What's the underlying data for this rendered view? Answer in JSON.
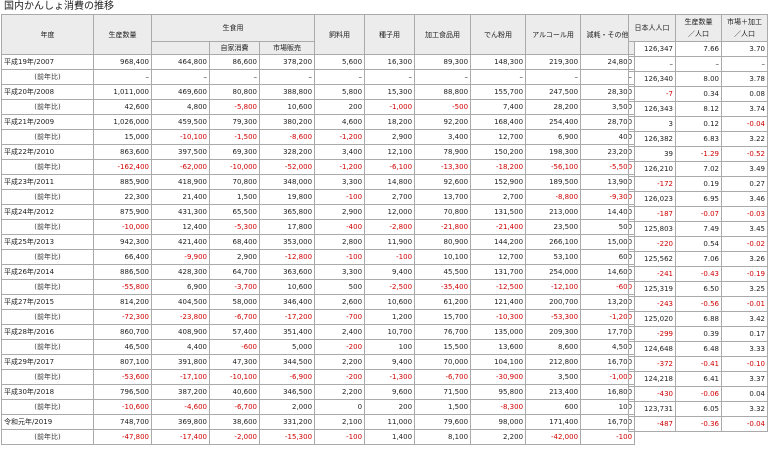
{
  "title": "国内かんしょ消費の推移",
  "headers": {
    "year": "年度",
    "production": "生産数量",
    "food": "生食用",
    "household": "自家消費",
    "market": "市場販売",
    "feed": "飼料用",
    "seed": "種子用",
    "processed": "加工食品用",
    "starch": "でん粉用",
    "alcohol": "アルコール用",
    "loss": "減耗・その他",
    "population": "日本人人口",
    "per_capita_prod": "生産数量\n／人口",
    "per_capita_market": "市場＋加工\n／人口"
  },
  "yoy_label": "(前年比)",
  "rows": [
    {
      "year": "平成19年/2007",
      "v": [
        "968,400",
        "464,800",
        "86,600",
        "378,200",
        "5,600",
        "16,300",
        "89,300",
        "148,300",
        "219,300",
        "24,800"
      ],
      "d": [
        "–",
        "–",
        "–",
        "–",
        "–",
        "–",
        "–",
        "–",
        "–",
        "–"
      ],
      "p": [
        "126,347",
        "7.66",
        "3.70"
      ],
      "pd": [
        "–",
        "–",
        "–"
      ]
    },
    {
      "year": "平成20年/2008",
      "v": [
        "1,011,000",
        "469,600",
        "80,800",
        "388,800",
        "5,800",
        "15,300",
        "88,800",
        "155,700",
        "247,500",
        "28,300"
      ],
      "d": [
        "42,600",
        "4,800",
        "-5,800",
        "10,600",
        "200",
        "-1,000",
        "-500",
        "7,400",
        "28,200",
        "3,500"
      ],
      "p": [
        "126,340",
        "8.00",
        "3.78"
      ],
      "pd": [
        "-7",
        "0.34",
        "0.08"
      ]
    },
    {
      "year": "平成21年/2009",
      "v": [
        "1,026,000",
        "459,500",
        "79,300",
        "380,200",
        "4,600",
        "18,200",
        "92,200",
        "168,400",
        "254,400",
        "28,700"
      ],
      "d": [
        "15,000",
        "-10,100",
        "-1,500",
        "-8,600",
        "-1,200",
        "2,900",
        "3,400",
        "12,700",
        "6,900",
        "400"
      ],
      "p": [
        "126,343",
        "8.12",
        "3.74"
      ],
      "pd": [
        "3",
        "0.12",
        "-0.04"
      ]
    },
    {
      "year": "平成22年/2010",
      "v": [
        "863,600",
        "397,500",
        "69,300",
        "328,200",
        "3,400",
        "12,100",
        "78,900",
        "150,200",
        "198,300",
        "23,200"
      ],
      "d": [
        "-162,400",
        "-62,000",
        "-10,000",
        "-52,000",
        "-1,200",
        "-6,100",
        "-13,300",
        "-18,200",
        "-56,100",
        "-5,500"
      ],
      "p": [
        "126,382",
        "6.83",
        "3.22"
      ],
      "pd": [
        "39",
        "-1.29",
        "-0.52"
      ]
    },
    {
      "year": "平成23年/2011",
      "v": [
        "885,900",
        "418,900",
        "70,800",
        "348,000",
        "3,300",
        "14,800",
        "92,600",
        "152,900",
        "189,500",
        "13,900"
      ],
      "d": [
        "22,300",
        "21,400",
        "1,500",
        "19,800",
        "-100",
        "2,700",
        "13,700",
        "2,700",
        "-8,800",
        "-9,300"
      ],
      "p": [
        "126,210",
        "7.02",
        "3.49"
      ],
      "pd": [
        "-172",
        "0.19",
        "0.27"
      ]
    },
    {
      "year": "平成24年/2012",
      "v": [
        "875,900",
        "431,300",
        "65,500",
        "365,800",
        "2,900",
        "12,000",
        "70,800",
        "131,500",
        "213,000",
        "14,400"
      ],
      "d": [
        "-10,000",
        "12,400",
        "-5,300",
        "17,800",
        "-400",
        "-2,800",
        "-21,800",
        "-21,400",
        "23,500",
        "500"
      ],
      "p": [
        "126,023",
        "6.95",
        "3.46"
      ],
      "pd": [
        "-187",
        "-0.07",
        "-0.03"
      ]
    },
    {
      "year": "平成25年/2013",
      "v": [
        "942,300",
        "421,400",
        "68,400",
        "353,000",
        "2,800",
        "11,900",
        "80,900",
        "144,200",
        "266,100",
        "15,000"
      ],
      "d": [
        "66,400",
        "-9,900",
        "2,900",
        "-12,800",
        "-100",
        "-100",
        "10,100",
        "12,700",
        "53,100",
        "600"
      ],
      "p": [
        "125,803",
        "7.49",
        "3.45"
      ],
      "pd": [
        "-220",
        "0.54",
        "-0.02"
      ]
    },
    {
      "year": "平成26年/2014",
      "v": [
        "886,500",
        "428,300",
        "64,700",
        "363,600",
        "3,300",
        "9,400",
        "45,500",
        "131,700",
        "254,000",
        "14,600"
      ],
      "d": [
        "-55,800",
        "6,900",
        "-3,700",
        "10,600",
        "500",
        "-2,500",
        "-35,400",
        "-12,500",
        "-12,100",
        "-600"
      ],
      "p": [
        "125,562",
        "7.06",
        "3.26"
      ],
      "pd": [
        "-241",
        "-0.43",
        "-0.19"
      ]
    },
    {
      "year": "平成27年/2015",
      "v": [
        "814,200",
        "404,500",
        "58,000",
        "346,400",
        "2,600",
        "10,600",
        "61,200",
        "121,400",
        "200,700",
        "13,200"
      ],
      "d": [
        "-72,300",
        "-23,800",
        "-6,700",
        "-17,200",
        "-700",
        "1,200",
        "15,700",
        "-10,300",
        "-53,300",
        "-1,200"
      ],
      "p": [
        "125,319",
        "6.50",
        "3.25"
      ],
      "pd": [
        "-243",
        "-0.56",
        "-0.01"
      ]
    },
    {
      "year": "平成28年/2016",
      "v": [
        "860,700",
        "408,900",
        "57,400",
        "351,400",
        "2,400",
        "10,700",
        "76,700",
        "135,000",
        "209,300",
        "17,700"
      ],
      "d": [
        "46,500",
        "4,400",
        "-600",
        "5,000",
        "-200",
        "100",
        "15,500",
        "13,600",
        "8,600",
        "4,500"
      ],
      "p": [
        "125,020",
        "6.88",
        "3.42"
      ],
      "pd": [
        "-299",
        "0.39",
        "0.17"
      ]
    },
    {
      "year": "平成29年/2017",
      "v": [
        "807,100",
        "391,800",
        "47,300",
        "344,500",
        "2,200",
        "9,400",
        "70,000",
        "104,100",
        "212,800",
        "16,700"
      ],
      "d": [
        "-53,600",
        "-17,100",
        "-10,100",
        "-6,900",
        "-200",
        "-1,300",
        "-6,700",
        "-30,900",
        "3,500",
        "-1,000"
      ],
      "p": [
        "124,648",
        "6.48",
        "3.33"
      ],
      "pd": [
        "-372",
        "-0.41",
        "-0.10"
      ]
    },
    {
      "year": "平成30年/2018",
      "v": [
        "796,500",
        "387,200",
        "40,600",
        "346,500",
        "2,200",
        "9,600",
        "71,500",
        "95,800",
        "213,400",
        "16,800"
      ],
      "d": [
        "-10,600",
        "-4,600",
        "-6,700",
        "2,000",
        "0",
        "200",
        "1,500",
        "-8,300",
        "600",
        "100"
      ],
      "p": [
        "124,218",
        "6.41",
        "3.37"
      ],
      "pd": [
        "-430",
        "-0.06",
        "0.04"
      ]
    },
    {
      "year": "令和元年/2019",
      "v": [
        "748,700",
        "369,800",
        "38,600",
        "331,200",
        "2,100",
        "11,000",
        "79,600",
        "98,000",
        "171,400",
        "16,700"
      ],
      "d": [
        "-47,800",
        "-17,400",
        "-2,000",
        "-15,300",
        "-100",
        "1,400",
        "8,100",
        "2,200",
        "-42,000",
        "-100"
      ],
      "p": [
        "123,731",
        "6.05",
        "3.32"
      ],
      "pd": [
        "-487",
        "-0.36",
        "-0.04"
      ]
    }
  ]
}
